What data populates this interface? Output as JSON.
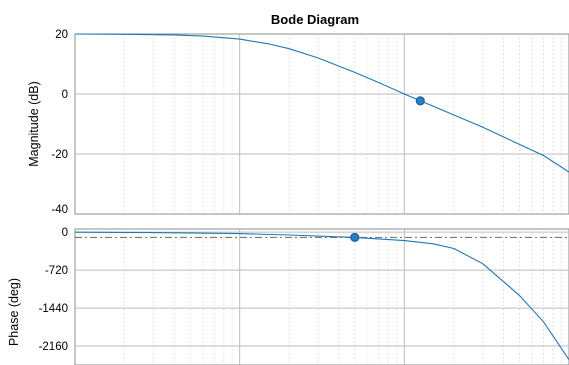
{
  "chart_data": {
    "type": "line",
    "title": "Bode Diagram",
    "xscale": "log",
    "xlim": [
      0.1,
      100
    ],
    "panels": [
      {
        "name": "magnitude",
        "ylabel": "Magnitude (dB)",
        "ylim": [
          -40,
          20
        ],
        "yticks": [
          20,
          0,
          -20,
          -40
        ],
        "series": [
          {
            "x": [
              0.1,
              0.2,
              0.4,
              0.6,
              1,
              1.5,
              2,
              3,
              5,
              7,
              10,
              15,
              20,
              30,
              50,
              70,
              100
            ],
            "values": [
              20,
              19.9,
              19.7,
              19.3,
              18.3,
              16.7,
              15.1,
              12,
              7.2,
              3.8,
              0,
              -4.1,
              -7,
              -11.1,
              -16.8,
              -20.5,
              -26
            ]
          }
        ],
        "marker": {
          "x": 12.5,
          "y": -2.3
        }
      },
      {
        "name": "phase",
        "ylabel": "Phase (deg)",
        "ylim": [
          -2520,
          60
        ],
        "yticks": [
          0,
          -720,
          -1440,
          -2160
        ],
        "series": [
          {
            "x": [
              0.1,
              0.3,
              1,
              2,
              5,
              10,
              15,
              20,
              30,
              50,
              70,
              100
            ],
            "values": [
              0,
              -8,
              -27,
              -54,
              -100,
              -160,
              -220,
              -310,
              -600,
              -1200,
              -1700,
              -2420
            ]
          }
        ],
        "reference_line": {
          "y": -100
        },
        "marker": {
          "x": 5,
          "y": -100
        }
      }
    ]
  }
}
